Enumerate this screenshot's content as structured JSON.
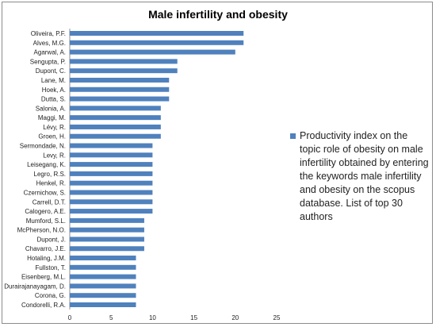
{
  "chart_data": {
    "type": "bar",
    "orientation": "horizontal",
    "title": "Male infertility and obesity",
    "categories": [
      "Oliveira, P.F.",
      "Alves, M.G.",
      "Agarwal, A.",
      "Sengupta, P.",
      "Dupont, C.",
      "Lane, M.",
      "Hoek, A.",
      "Dutta, S.",
      "Salonia, A.",
      "Maggi, M.",
      "Lévy, R.",
      "Groen, H.",
      "Sermondade, N.",
      "Levy, R.",
      "Leisegang, K.",
      "Legro, R.S.",
      "Henkel, R.",
      "Czernichow, S.",
      "Carrell, D.T.",
      "Calogero, A.E.",
      "Mumford, S.L.",
      "McPherson, N.O.",
      "Dupont, J.",
      "Chavarro, J.E.",
      "Hotaling, J.M.",
      "Fullston, T.",
      "Eisenberg, M.L.",
      "Durairajanayagam, D.",
      "Corona, G.",
      "Condorelli, R.A."
    ],
    "series": [
      {
        "name": "Productivity index on the topic role of obesity on male infertility obtained by entering the keywords male infertility and obesity on the scopus database. List of top 30 authors",
        "color": "#4f81bd",
        "values": [
          21,
          21,
          20,
          13,
          13,
          12,
          12,
          12,
          11,
          11,
          11,
          11,
          10,
          10,
          10,
          10,
          10,
          10,
          10,
          10,
          9,
          9,
          9,
          9,
          8,
          8,
          8,
          8,
          8,
          8
        ]
      }
    ],
    "xlim": [
      0,
      25
    ],
    "xticks": [
      "0",
      "5",
      "10",
      "15",
      "20",
      "25"
    ],
    "xlabel": "",
    "ylabel": "",
    "grid": false,
    "legend_position": "right"
  }
}
